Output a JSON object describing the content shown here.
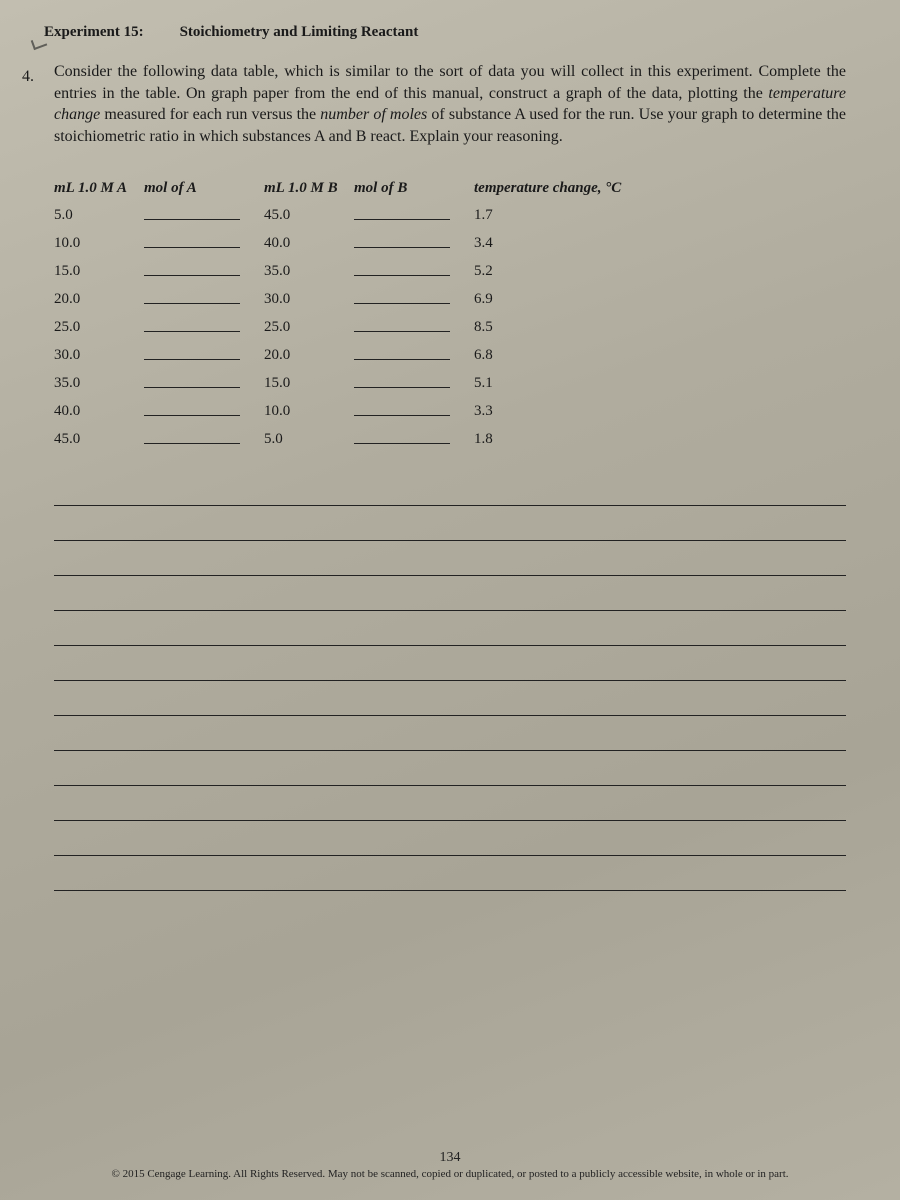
{
  "header": {
    "experiment_label": "Experiment 15:",
    "experiment_title": "Stoichiometry and Limiting Reactant"
  },
  "question_number": "4.",
  "problem_text_parts": {
    "p1": "Consider the following data table, which is similar to the sort of data you will collect in this experiment. Complete the entries in the table. On graph paper from the end of this manual, construct a graph of the data, plotting the ",
    "p2_italic": "temperature change",
    "p3": " measured for each run versus the ",
    "p4_italic": "number of moles",
    "p5": " of substance A used for the run. Use your graph to determine the stoichiometric ratio in which substances A and B react. Explain your reasoning."
  },
  "table": {
    "headers": {
      "mlA": "mL 1.0 M A",
      "molA": "mol of A",
      "mlB": "mL 1.0 M B",
      "molB": "mol of B",
      "temp": "temperature change, °C"
    },
    "rows": [
      {
        "mlA": "5.0",
        "mlB": "45.0",
        "temp": "1.7"
      },
      {
        "mlA": "10.0",
        "mlB": "40.0",
        "temp": "3.4"
      },
      {
        "mlA": "15.0",
        "mlB": "35.0",
        "temp": "5.2"
      },
      {
        "mlA": "20.0",
        "mlB": "30.0",
        "temp": "6.9"
      },
      {
        "mlA": "25.0",
        "mlB": "25.0",
        "temp": "8.5"
      },
      {
        "mlA": "30.0",
        "mlB": "20.0",
        "temp": "6.8"
      },
      {
        "mlA": "35.0",
        "mlB": "15.0",
        "temp": "5.1"
      },
      {
        "mlA": "40.0",
        "mlB": "10.0",
        "temp": "3.3"
      },
      {
        "mlA": "45.0",
        "mlB": "5.0",
        "temp": "1.8"
      }
    ]
  },
  "answer_line_count": 12,
  "footer": {
    "page_number": "134",
    "copyright": "© 2015 Cengage Learning. All Rights Reserved. May not be scanned, copied or duplicated, or posted to a publicly accessible website, in whole or in part."
  },
  "colors": {
    "page_bg": "#b8b4a8",
    "text": "#1a1a1a",
    "rule": "#222222"
  }
}
